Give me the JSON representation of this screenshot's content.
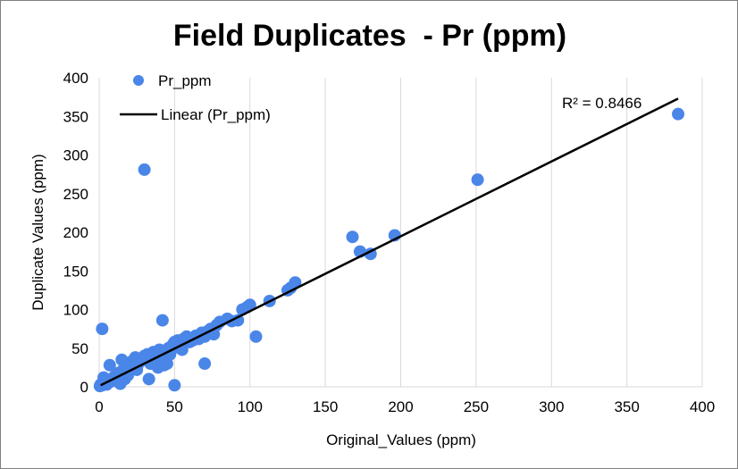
{
  "chart_data": {
    "type": "scatter",
    "title": "Field Duplicates  - Pr (ppm)",
    "xlabel": "Original_Values (ppm)",
    "ylabel": "Duplicate Values (ppm)",
    "xlim": [
      0,
      400
    ],
    "ylim": [
      0,
      400
    ],
    "xticks": [
      "0",
      "50",
      "100",
      "150",
      "200",
      "250",
      "300",
      "350",
      "400"
    ],
    "yticks": [
      "0",
      "50",
      "100",
      "150",
      "200",
      "250",
      "300",
      "350",
      "400"
    ],
    "grid": "vertical major gridlines",
    "legend_position": "top-left",
    "marker_color": "#4a86e8",
    "trendline_color": "#000000",
    "series": [
      {
        "name": "Pr_ppm",
        "x": [
          0.5,
          1,
          2,
          3,
          4,
          5,
          6,
          7,
          8,
          9,
          10,
          11,
          12,
          13,
          14,
          15,
          16,
          17,
          18,
          19,
          20,
          21,
          22,
          23,
          24,
          25,
          26,
          27,
          28,
          30,
          31,
          32,
          33,
          34,
          35,
          36,
          37,
          38,
          39,
          40,
          41,
          42,
          43,
          44,
          45,
          46,
          47,
          48,
          49,
          50,
          52,
          54,
          55,
          56,
          58,
          60,
          62,
          64,
          66,
          68,
          70,
          72,
          74,
          76,
          78,
          80,
          85,
          88,
          92,
          95,
          98,
          100,
          104,
          113,
          125,
          127,
          130,
          168,
          173,
          180,
          196,
          251,
          384,
          2,
          30,
          42,
          33,
          50,
          70,
          15,
          5
        ],
        "y": [
          1,
          3,
          2,
          12,
          5,
          6,
          9,
          28,
          7,
          10,
          13,
          12,
          15,
          18,
          4,
          20,
          22,
          10,
          25,
          15,
          28,
          32,
          30,
          35,
          38,
          22,
          30,
          33,
          35,
          40,
          38,
          42,
          35,
          30,
          40,
          45,
          38,
          42,
          25,
          48,
          35,
          44,
          28,
          47,
          30,
          50,
          42,
          48,
          55,
          58,
          60,
          55,
          48,
          62,
          65,
          58,
          60,
          66,
          62,
          70,
          65,
          72,
          75,
          68,
          80,
          84,
          88,
          85,
          86,
          100,
          103,
          106,
          65,
          111,
          125,
          128,
          135,
          194,
          175,
          172,
          196,
          268,
          353,
          75,
          281,
          86,
          10,
          2,
          30,
          35,
          3
        ]
      },
      {
        "name": "Linear (Pr_ppm)",
        "type": "line",
        "x": [
          1,
          384
        ],
        "y": [
          2,
          373
        ]
      }
    ],
    "annotations": [
      {
        "text": "R² = 0.8466"
      }
    ]
  }
}
